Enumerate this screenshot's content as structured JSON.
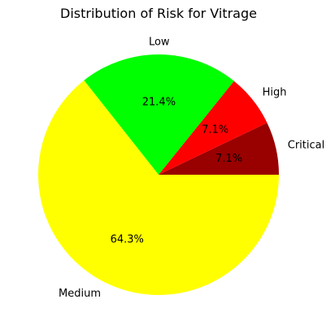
{
  "chart_data": {
    "type": "pie",
    "title": "Distribution of Risk for Vitrage",
    "slices": [
      {
        "label": "Critical",
        "value": 7.1,
        "pct_label": "7.1%",
        "color": "#990000"
      },
      {
        "label": "High",
        "value": 7.1,
        "pct_label": "7.1%",
        "color": "#ff0000"
      },
      {
        "label": "Low",
        "value": 21.4,
        "pct_label": "21.4%",
        "color": "#00ff00"
      },
      {
        "label": "Medium",
        "value": 64.3,
        "pct_label": "64.3%",
        "color": "#ffff00"
      }
    ],
    "start_angle_deg": 0,
    "direction": "counterclockwise"
  }
}
